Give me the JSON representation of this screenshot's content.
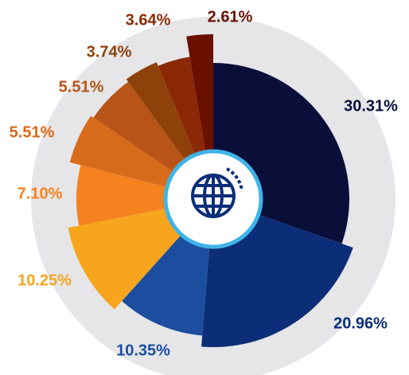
{
  "chart_data": {
    "type": "pie",
    "values": [
      30.31,
      20.96,
      10.35,
      10.25,
      7.1,
      5.51,
      5.51,
      3.74,
      3.64,
      2.61
    ],
    "value_labels": [
      "30.31%",
      "20.96%",
      "10.35%",
      "10.25%",
      "7.10%",
      "5.51%",
      "5.51%",
      "3.74%",
      "3.64%",
      "2.61%"
    ],
    "colors": [
      "#0a0f3a",
      "#0c2e78",
      "#1b4e9f",
      "#f7a51c",
      "#f5821f",
      "#d86a1b",
      "#b85417",
      "#8e420a",
      "#8b2806",
      "#6a1000"
    ]
  }
}
